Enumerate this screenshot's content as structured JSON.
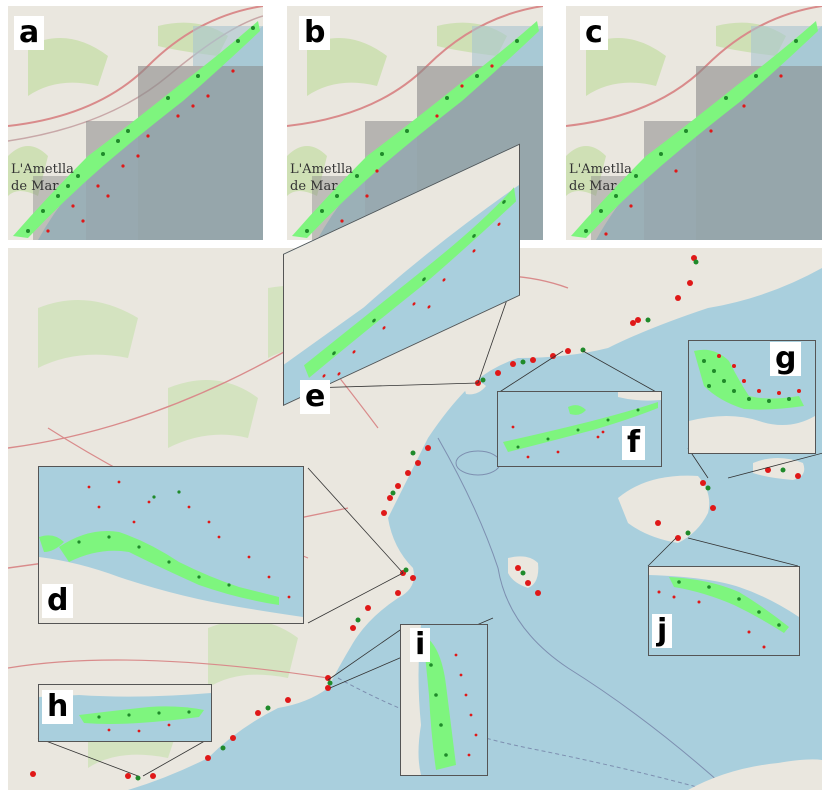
{
  "panels": [
    {
      "label": "a",
      "town_line1": "L'Ametlla",
      "town_line2": "de Mar"
    },
    {
      "label": "b",
      "town_line1": "L'Ametlla",
      "town_line2": "de Mar"
    },
    {
      "label": "c",
      "town_line1": "L'Ametlla",
      "town_line2": "de Mar"
    }
  ],
  "insets": {
    "d": "d",
    "e": "e",
    "f": "f",
    "g": "g",
    "h": "h",
    "i": "i",
    "j": "j"
  },
  "colors": {
    "sea": "#a9cfdd",
    "land": "#eae7df",
    "seagrass": "#7ef57e",
    "point_green": "#1f8a2a",
    "point_red": "#e01818",
    "road": "#d98b8b",
    "grid_overlay": "#8a8a8a"
  },
  "icons": {
    "legend_point_green": "green-dot",
    "legend_point_red": "red-dot"
  }
}
